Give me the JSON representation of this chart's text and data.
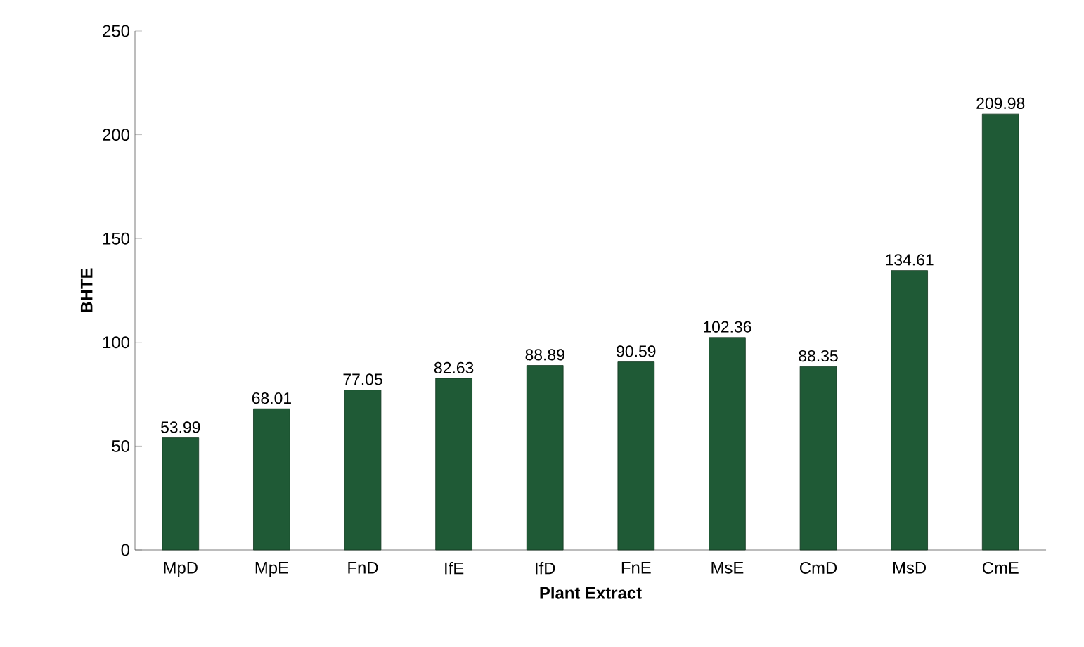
{
  "chart_data": {
    "type": "bar",
    "xlabel": "Plant Extract",
    "ylabel": "BHTE",
    "categories": [
      "MpD",
      "MpE",
      "FnD",
      "IfE",
      "IfD",
      "FnE",
      "MsE",
      "CmD",
      "MsD",
      "CmE"
    ],
    "values": [
      53.99,
      68.01,
      77.05,
      82.63,
      88.89,
      90.59,
      102.36,
      88.35,
      134.61,
      209.98
    ],
    "color": "#1f5a36",
    "ylim": [
      0,
      250
    ],
    "yticks": [
      0,
      50,
      100,
      150,
      200,
      250
    ],
    "grid": false,
    "data_labels": true
  }
}
